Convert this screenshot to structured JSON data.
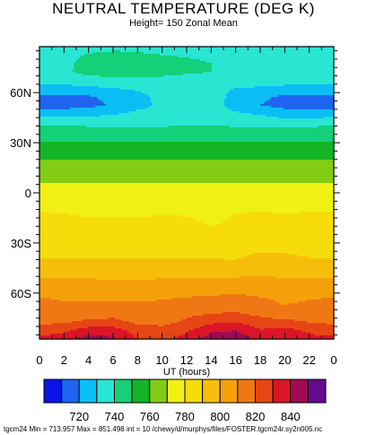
{
  "title": "NEUTRAL TEMPERATURE (DEG K)",
  "subtitle": "Height= 150 Zonal Mean",
  "footer": "tgcm24 Min = 713.957  Max  = 851.498  int = 10 /chewy/d/murphys/files/FOSTER.tgcm24r.sy2n005.nc",
  "chart_data": {
    "type": "heatmap",
    "title": "NEUTRAL TEMPERATURE (DEG K)",
    "subtitle": "Height= 150 Zonal Mean",
    "xlabel": "UT (hours)",
    "ylabel": "",
    "x_ticks": [
      "0",
      "2",
      "4",
      "6",
      "8",
      "10",
      "12",
      "14",
      "16",
      "18",
      "20",
      "22",
      "0"
    ],
    "y_ticks": [
      {
        "lat": 60,
        "label": "60N"
      },
      {
        "lat": 30,
        "label": "30N"
      },
      {
        "lat": 0,
        "label": "0"
      },
      {
        "lat": -30,
        "label": "30S"
      },
      {
        "lat": -60,
        "label": "60S"
      }
    ],
    "xlim": [
      0,
      24
    ],
    "ylim": [
      -87.5,
      87.5
    ],
    "contour_interval": 10,
    "min": 713.957,
    "max": 851.498,
    "colorbar": {
      "labels": [
        "720",
        "740",
        "760",
        "780",
        "800",
        "820",
        "840"
      ],
      "levels": [
        710,
        720,
        730,
        740,
        750,
        760,
        770,
        780,
        790,
        800,
        810,
        820,
        830,
        840,
        850
      ],
      "colors": [
        "#0a14e6",
        "#1e64f0",
        "#0abef5",
        "#28e6d2",
        "#14d078",
        "#14b428",
        "#82cd14",
        "#f0f014",
        "#f5dc0a",
        "#f5be0a",
        "#f5a00a",
        "#f07814",
        "#e64614",
        "#dc1428",
        "#a00a50",
        "#640a8c"
      ]
    },
    "lat_values": [
      -87.5,
      -82.5,
      -77.5,
      -72.5,
      -67.5,
      -62.5,
      -57.5,
      -52.5,
      -47.5,
      -42.5,
      -37.5,
      -32.5,
      -27.5,
      -22.5,
      -17.5,
      -12.5,
      -7.5,
      -2.5,
      2.5,
      7.5,
      12.5,
      17.5,
      22.5,
      27.5,
      32.5,
      37.5,
      42.5,
      47.5,
      52.5,
      57.5,
      62.5,
      67.5,
      72.5,
      77.5,
      82.5,
      87.5
    ],
    "ut_values": [
      0,
      2,
      4,
      6,
      8,
      10,
      12,
      14,
      16,
      18,
      20,
      22,
      24
    ],
    "temperature": [
      [
        832,
        836,
        845,
        842,
        830,
        828,
        833,
        846,
        848,
        836,
        840,
        833,
        832
      ],
      [
        826,
        828,
        835,
        835,
        826,
        824,
        829,
        838,
        840,
        831,
        834,
        828,
        826
      ],
      [
        818,
        819,
        823,
        824,
        818,
        817,
        822,
        828,
        830,
        824,
        823,
        820,
        818
      ],
      [
        815,
        813,
        815,
        816,
        814,
        814,
        818,
        820,
        821,
        818,
        814,
        815,
        815
      ],
      [
        813,
        811,
        812,
        812,
        812,
        812,
        814,
        816,
        817,
        814,
        810,
        812,
        813
      ],
      [
        810,
        809,
        808,
        808,
        808,
        809,
        810,
        811,
        812,
        810,
        808,
        809,
        810
      ],
      [
        806,
        806,
        805,
        804,
        804,
        805,
        806,
        806,
        807,
        806,
        805,
        806,
        806
      ],
      [
        802,
        802,
        801,
        800,
        800,
        801,
        802,
        802,
        802,
        802,
        801,
        802,
        802
      ],
      [
        797,
        797,
        797,
        797,
        796,
        797,
        797,
        797,
        797,
        798,
        798,
        797,
        797
      ],
      [
        793,
        793,
        793,
        793,
        792,
        793,
        793,
        793,
        792,
        795,
        795,
        793,
        793
      ],
      [
        789,
        789,
        789,
        789,
        789,
        789,
        789,
        788,
        788,
        792,
        791,
        789,
        789
      ],
      [
        787,
        787,
        787,
        787,
        787,
        787,
        787,
        786,
        786,
        787,
        787,
        787,
        787
      ],
      [
        786,
        786,
        786,
        786,
        786,
        786,
        786,
        785,
        785,
        785,
        785,
        785,
        786
      ],
      [
        785,
        785,
        785,
        785,
        785,
        785,
        785,
        782,
        784,
        784,
        784,
        784,
        785
      ],
      [
        785,
        784,
        783,
        783,
        783,
        784,
        782,
        778,
        782,
        783,
        782,
        784,
        785
      ],
      [
        781,
        780,
        778,
        778,
        778,
        779,
        779,
        778,
        780,
        781,
        780,
        781,
        781
      ],
      [
        776,
        776,
        776,
        776,
        776,
        776,
        777,
        777,
        777,
        777,
        776,
        776,
        776
      ],
      [
        774,
        774,
        774,
        774,
        774,
        774,
        775,
        775,
        775,
        774,
        774,
        774,
        774
      ],
      [
        772,
        772,
        772,
        772,
        772,
        772,
        772,
        772,
        772,
        772,
        772,
        772,
        772
      ],
      [
        769,
        769,
        769,
        769,
        769,
        769,
        769,
        769,
        769,
        769,
        769,
        769,
        769
      ],
      [
        765,
        765,
        765,
        765,
        765,
        765,
        765,
        765,
        765,
        765,
        765,
        765,
        765
      ],
      [
        762,
        762,
        762,
        762,
        762,
        762,
        762,
        762,
        762,
        762,
        762,
        762,
        762
      ],
      [
        758,
        758,
        758,
        758,
        758,
        758,
        758,
        758,
        758,
        758,
        758,
        758,
        758
      ],
      [
        754,
        754,
        754,
        754,
        754,
        754,
        754,
        754,
        754,
        754,
        754,
        754,
        754
      ],
      [
        748,
        748,
        748,
        748,
        748,
        748,
        748,
        748,
        748,
        748,
        748,
        748,
        748
      ],
      [
        744,
        744,
        743,
        743,
        743,
        743,
        743,
        743,
        743,
        743,
        744,
        744,
        744
      ],
      [
        737,
        737,
        736,
        735,
        735,
        736,
        737,
        737,
        736,
        735,
        734,
        734,
        737
      ],
      [
        725,
        725,
        727,
        729,
        732,
        733,
        733,
        733,
        731,
        729,
        725,
        724,
        725
      ],
      [
        716,
        716,
        717,
        721,
        727,
        732,
        733,
        733,
        727,
        720,
        716,
        715,
        716
      ],
      [
        718,
        718,
        719,
        723,
        728,
        732,
        733,
        733,
        728,
        722,
        718,
        717,
        718
      ],
      [
        727,
        727,
        728,
        730,
        731,
        732,
        732,
        731,
        730,
        729,
        728,
        727,
        727
      ],
      [
        734,
        734,
        735,
        736,
        736,
        736,
        735,
        735,
        734,
        734,
        733,
        733,
        734
      ],
      [
        738,
        738,
        744,
        747,
        747,
        745,
        742,
        740,
        736,
        735,
        735,
        736,
        738
      ],
      [
        737,
        737,
        744,
        746,
        746,
        744,
        742,
        740,
        736,
        736,
        736,
        736,
        737
      ],
      [
        736,
        736,
        741,
        742,
        741,
        740,
        739,
        738,
        736,
        736,
        736,
        736,
        736
      ],
      [
        734,
        734,
        736,
        738,
        738,
        737,
        736,
        735,
        734,
        734,
        734,
        734,
        734
      ]
    ]
  }
}
